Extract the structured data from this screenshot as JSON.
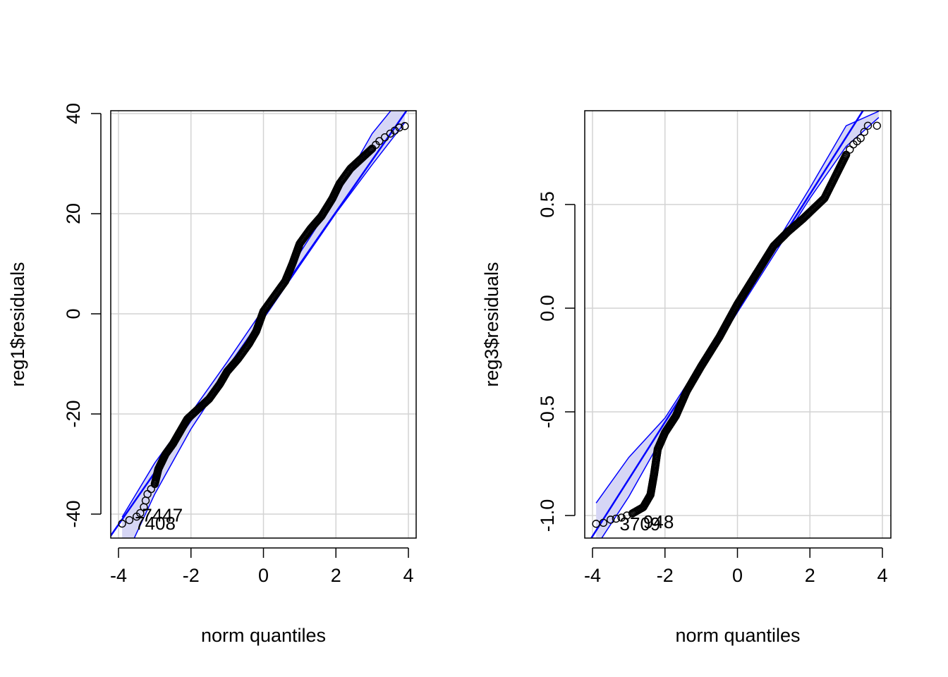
{
  "colors": {
    "background": "#ffffff",
    "points": "#000000",
    "line": "#0000ff",
    "band_fill": "#d6d6f5",
    "grid": "#d3d3d3"
  },
  "chart_data": [
    {
      "type": "scatter",
      "subtype": "qq-plot",
      "title": "",
      "xlabel": "norm quantiles",
      "ylabel": "reg1$residuals",
      "xlim": [
        -4,
        4
      ],
      "ylim": [
        -45,
        40
      ],
      "xticks": [
        -4,
        -2,
        0,
        2,
        4
      ],
      "xtick_labels": [
        "-4",
        "-2",
        "0",
        "2",
        "4"
      ],
      "yticks": [
        -40,
        -20,
        0,
        20,
        40
      ],
      "ytick_labels": [
        "-40",
        "-20",
        "0",
        "20",
        "40"
      ],
      "grid": true,
      "reference_line": {
        "slope": 10.4,
        "intercept": -0.5,
        "color": "#0000ff"
      },
      "envelope": {
        "x": [
          -3.9,
          -3.0,
          -2.0,
          -1.0,
          0.0,
          1.0,
          2.0,
          3.0,
          3.9
        ],
        "lower": [
          -50,
          -36,
          -23,
          -12,
          -1,
          9.6,
          20.1,
          29.8,
          38.2
        ],
        "upper": [
          -40.6,
          -29.8,
          -19.8,
          -9.6,
          1.0,
          12.1,
          23.3,
          36.0,
          44.0
        ]
      },
      "qq_curve": [
        [
          -3.9,
          -41.9
        ],
        [
          -3.7,
          -41.2
        ],
        [
          -3.5,
          -40.5
        ],
        [
          -3.4,
          -39.8
        ],
        [
          -3.3,
          -38.6
        ],
        [
          -3.2,
          -36.0
        ],
        [
          -3.0,
          -34.0
        ],
        [
          -2.9,
          -31.0
        ],
        [
          -2.7,
          -28.0
        ],
        [
          -2.5,
          -26.0
        ],
        [
          -2.3,
          -23.5
        ],
        [
          -2.1,
          -21.0
        ],
        [
          -1.8,
          -19.0
        ],
        [
          -1.5,
          -17.0
        ],
        [
          -1.2,
          -14.0
        ],
        [
          -1.0,
          -11.5
        ],
        [
          -0.7,
          -9.0
        ],
        [
          -0.4,
          -6.0
        ],
        [
          -0.2,
          -3.5
        ],
        [
          0.0,
          0.5
        ],
        [
          0.3,
          3.5
        ],
        [
          0.6,
          6.5
        ],
        [
          0.8,
          10.0
        ],
        [
          1.0,
          14.0
        ],
        [
          1.3,
          17.0
        ],
        [
          1.6,
          19.5
        ],
        [
          1.9,
          23.0
        ],
        [
          2.1,
          26.0
        ],
        [
          2.4,
          29.0
        ],
        [
          2.7,
          31.0
        ],
        [
          3.0,
          33.0
        ],
        [
          3.2,
          34.5
        ],
        [
          3.5,
          36.0
        ],
        [
          3.75,
          37.2
        ],
        [
          3.9,
          37.5
        ]
      ],
      "point_labels": [
        {
          "x": -3.35,
          "y": -40.2,
          "text": "7447"
        },
        {
          "x": -3.55,
          "y": -41.8,
          "text": "7408"
        }
      ]
    },
    {
      "type": "scatter",
      "subtype": "qq-plot",
      "title": "",
      "xlabel": "norm quantiles",
      "ylabel": "reg3$residuals",
      "xlim": [
        -4,
        4
      ],
      "ylim": [
        -1.1,
        0.95
      ],
      "xticks": [
        -4,
        -2,
        0,
        2,
        4
      ],
      "xtick_labels": [
        "-4",
        "-2",
        "0",
        "2",
        "4"
      ],
      "yticks": [
        -1.0,
        -0.5,
        0.0,
        0.5
      ],
      "ytick_labels": [
        "-1.0",
        "-0.5",
        "0.0",
        "0.5"
      ],
      "grid": true,
      "reference_line": {
        "slope": 0.275,
        "intercept": 0.0,
        "color": "#0000ff"
      },
      "envelope": {
        "x": [
          -3.9,
          -3.0,
          -2.0,
          -1.0,
          0.0,
          1.0,
          2.0,
          3.0,
          3.9
        ],
        "lower": [
          -1.15,
          -0.91,
          -0.6,
          -0.3,
          -0.02,
          0.255,
          0.53,
          0.78,
          0.92
        ],
        "upper": [
          -0.94,
          -0.72,
          -0.53,
          -0.26,
          0.02,
          0.295,
          0.58,
          0.88,
          0.95
        ]
      },
      "qq_curve": [
        [
          -3.9,
          -1.04
        ],
        [
          -3.7,
          -1.035
        ],
        [
          -3.5,
          -1.02
        ],
        [
          -3.2,
          -1.01
        ],
        [
          -2.9,
          -0.99
        ],
        [
          -2.6,
          -0.96
        ],
        [
          -2.4,
          -0.9
        ],
        [
          -2.3,
          -0.8
        ],
        [
          -2.2,
          -0.68
        ],
        [
          -2.0,
          -0.6
        ],
        [
          -1.7,
          -0.52
        ],
        [
          -1.4,
          -0.4
        ],
        [
          -1.0,
          -0.28
        ],
        [
          -0.5,
          -0.14
        ],
        [
          0.0,
          0.02
        ],
        [
          0.5,
          0.16
        ],
        [
          1.0,
          0.3
        ],
        [
          1.4,
          0.37
        ],
        [
          1.8,
          0.43
        ],
        [
          2.1,
          0.48
        ],
        [
          2.4,
          0.53
        ],
        [
          2.6,
          0.6
        ],
        [
          2.8,
          0.67
        ],
        [
          3.0,
          0.74
        ],
        [
          3.2,
          0.79
        ],
        [
          3.4,
          0.82
        ],
        [
          3.6,
          0.88
        ],
        [
          3.85,
          0.88
        ]
      ],
      "point_labels": [
        {
          "x": -2.6,
          "y": -1.03,
          "text": "948"
        },
        {
          "x": -3.25,
          "y": -1.04,
          "text": "3709"
        }
      ]
    }
  ]
}
